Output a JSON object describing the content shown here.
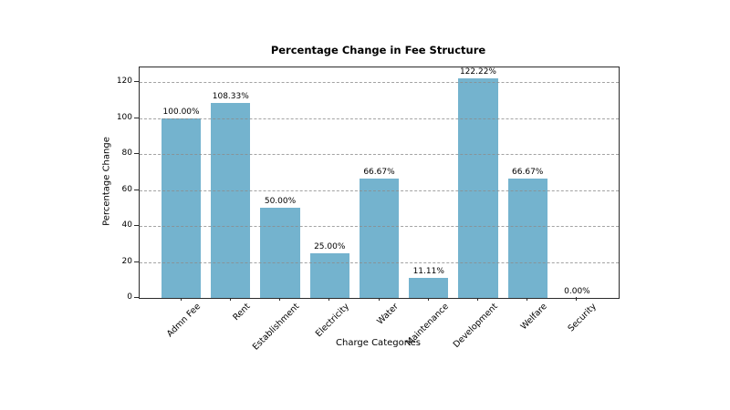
{
  "chart_data": {
    "type": "bar",
    "title": "Percentage Change in Fee Structure",
    "xlabel": "Charge Categories",
    "ylabel": "Percentage Change",
    "categories": [
      "Admn Fee",
      "Rent",
      "Establishment",
      "Electricity",
      "Water",
      "Maintenance",
      "Development",
      "Welfare",
      "Security"
    ],
    "values": [
      100.0,
      108.33,
      50.0,
      25.0,
      66.67,
      11.11,
      122.22,
      66.67,
      0.0
    ],
    "value_labels": [
      "100.00%",
      "108.33%",
      "50.00%",
      "25.00%",
      "66.67%",
      "11.11%",
      "122.22%",
      "66.67%",
      "0.00%"
    ],
    "yticks": [
      0,
      20,
      40,
      60,
      80,
      100,
      120
    ],
    "ytick_labels": [
      "0",
      "20",
      "40",
      "60",
      "80",
      "100",
      "120"
    ],
    "ylim": [
      0,
      128.33
    ],
    "grid": "horizontal-dashed",
    "grid_above_bars": true,
    "legend": "none",
    "bar_color": "#74b3ce",
    "spine_color": "#2b2b2b",
    "text_color": "#000000"
  }
}
